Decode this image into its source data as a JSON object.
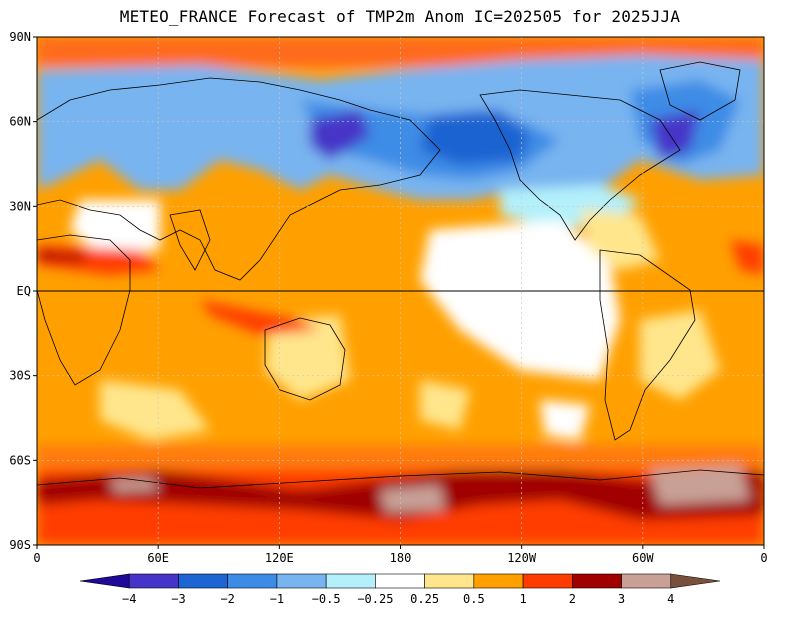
{
  "title": "METEO_FRANCE Forecast of TMP2m Anom IC=202505 for 2025JJA",
  "map": {
    "lat_labels": [
      "90N",
      "60N",
      "30N",
      "EQ",
      "30S",
      "60S",
      "90S"
    ],
    "lon_labels": [
      "0",
      "60E",
      "120E",
      "180",
      "120W",
      "60W",
      "0"
    ],
    "grid_lines": "dotted",
    "equator_line": true
  },
  "colorbar": {
    "colors": [
      "#1e0a96",
      "#4634c8",
      "#1e64d2",
      "#3c8ce6",
      "#78b4f0",
      "#b4f0fa",
      "#ffffff",
      "#ffe68c",
      "#ffa000",
      "#ff3c00",
      "#a00000",
      "#c8a096",
      "#78503c"
    ],
    "labels": [
      "-4",
      "-3",
      "-2",
      "-1",
      "-0.5",
      "-0.25",
      "0.25",
      "0.5",
      "1",
      "2",
      "3",
      "4"
    ],
    "style": "triangular-ends"
  },
  "palette": {
    "ocean_warm": "#ffa000",
    "land_white": "#ffffff",
    "polar_red": "#ff3c00",
    "cold_blue": "#3c8ce6",
    "deep_blue": "#1e64d2"
  }
}
